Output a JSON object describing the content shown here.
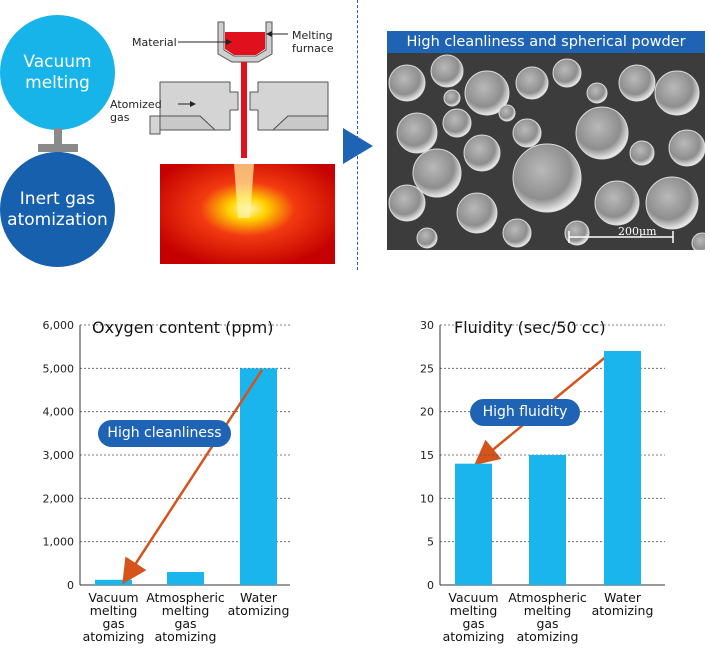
{
  "process": {
    "vacuum_label": "Vacuum\nmelting",
    "inert_label": "Inert gas\natomization",
    "plus_symbol": "+",
    "material_label": "Material",
    "furnace_label": "Melting\nfurnace",
    "gas_label": "Atomized\ngas"
  },
  "micrograph": {
    "banner": "High cleanliness and spherical powder",
    "scale_label": "200μm"
  },
  "colors": {
    "accent_blue": "#1f63b4",
    "light_blue": "#17b4ea",
    "bar": "#19b5ec",
    "arrow": "#d4541c"
  },
  "chart_data": [
    {
      "type": "bar",
      "title": "Oxygen content (ppm)",
      "categories": [
        "Vacuum\nmelting\ngas\natomizing",
        "Atmospheric\nmelting\ngas\natomizing",
        "Water\natomizing"
      ],
      "values": [
        120,
        300,
        5000
      ],
      "ylim": [
        0,
        6000
      ],
      "yticks": [
        "0",
        "1,000",
        "2,000",
        "3,000",
        "4,000",
        "5,000",
        "6,000"
      ],
      "callout": "High cleanliness"
    },
    {
      "type": "bar",
      "title": "Fluidity (sec/50 cc)",
      "categories": [
        "Vacuum\nmelting\ngas\natomizing",
        "Atmospheric\nmelting\ngas\natomizing",
        "Water\natomizing"
      ],
      "values": [
        14,
        15,
        27
      ],
      "ylim": [
        0,
        30
      ],
      "yticks": [
        "0",
        "5",
        "10",
        "15",
        "20",
        "25",
        "30"
      ],
      "callout": "High fluidity"
    }
  ]
}
